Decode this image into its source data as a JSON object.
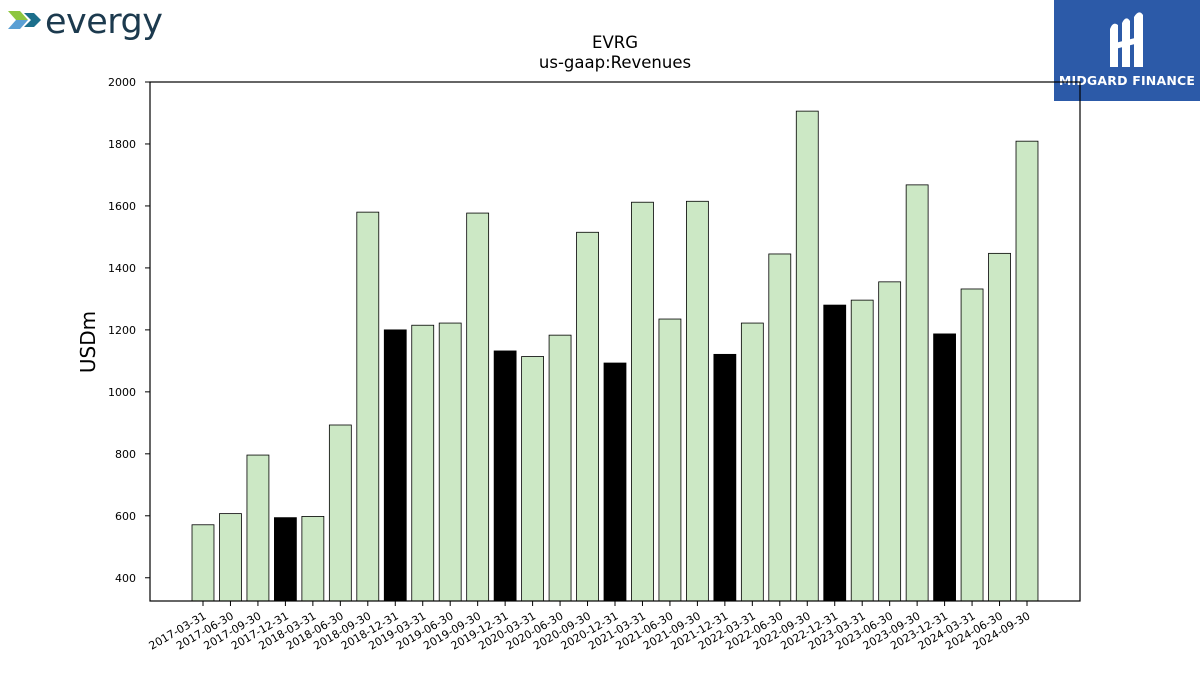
{
  "brand": {
    "company_wordmark": "evergy",
    "company_wordmark_color": "#1c3a4e",
    "company_logo_colors": [
      "#8dc63f",
      "#5a9fd4"
    ],
    "publisher_name": "MIDGARD FINANCE",
    "publisher_bg": "#2c5aa8"
  },
  "chart_data": {
    "type": "bar",
    "title": "EVRG",
    "subtitle": "us-gaap:Revenues",
    "xlabel": "",
    "ylabel": "USDm",
    "ylim": [
      325,
      2000
    ],
    "yticks": [
      400,
      600,
      800,
      1000,
      1200,
      1400,
      1600,
      1800,
      2000
    ],
    "grid": false,
    "legend": "none",
    "colors": {
      "quarter": "#cce8c5",
      "fiscal_year_end": "#000000",
      "edge": "#000000"
    },
    "categories": [
      "2017-03-31",
      "2017-06-30",
      "2017-09-30",
      "2017-12-31",
      "2018-03-31",
      "2018-06-30",
      "2018-09-30",
      "2018-12-31",
      "2019-03-31",
      "2019-06-30",
      "2019-09-30",
      "2019-12-31",
      "2020-03-31",
      "2020-06-30",
      "2020-09-30",
      "2020-12-31",
      "2021-03-31",
      "2021-06-30",
      "2021-09-30",
      "2021-12-31",
      "2022-03-31",
      "2022-06-30",
      "2022-09-30",
      "2022-12-31",
      "2023-03-31",
      "2023-06-30",
      "2023-09-30",
      "2023-12-31",
      "2024-03-31",
      "2024-06-30",
      "2024-09-30"
    ],
    "values": [
      571,
      607,
      796,
      594,
      598,
      893,
      1580,
      1200,
      1215,
      1222,
      1577,
      1132,
      1114,
      1183,
      1515,
      1093,
      1612,
      1235,
      1615,
      1121,
      1222,
      1445,
      1906,
      1280,
      1296,
      1355,
      1668,
      1187,
      1332,
      1447,
      1809
    ],
    "highlight": [
      false,
      false,
      false,
      true,
      false,
      false,
      false,
      true,
      false,
      false,
      false,
      true,
      false,
      false,
      false,
      true,
      false,
      false,
      false,
      true,
      false,
      false,
      false,
      true,
      false,
      false,
      false,
      true,
      false,
      false,
      false
    ]
  }
}
